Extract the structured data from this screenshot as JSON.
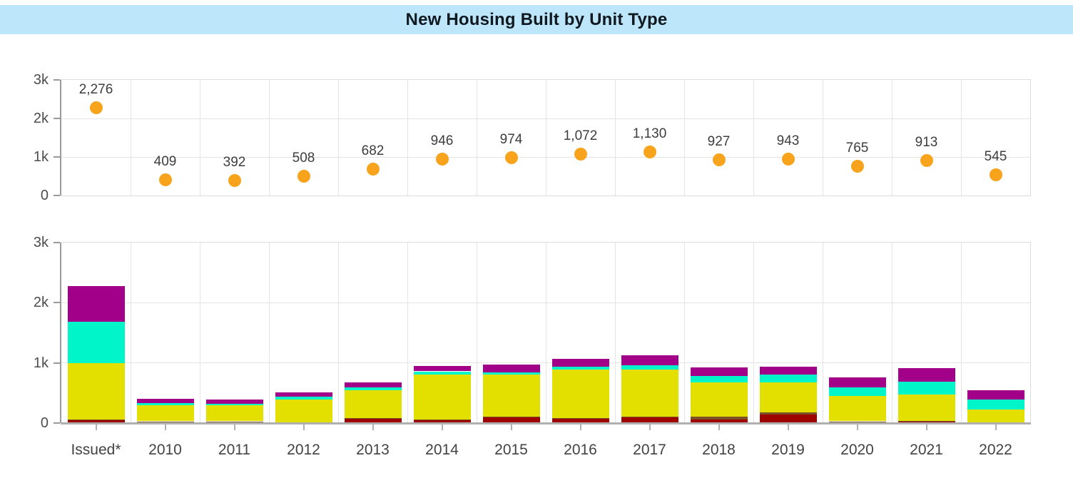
{
  "title": "New Housing Built by Unit Type",
  "colors": {
    "title_bar_bg": "#BDE6FA",
    "title_text": "#101820",
    "marker_orange": "#F7A41C",
    "bar_dark_red": "#9F0500",
    "bar_brown": "#7B5228",
    "bar_yellow": "#E3E000",
    "bar_turquoise": "#00F6C8",
    "bar_purple": "#A30089",
    "grid": "#E4E4E4",
    "panel_border": "#DCDCDC",
    "axis": "#9A9A9A",
    "axis_label": "#4D4D4D",
    "value_label": "#3D3D3D",
    "baseline": "#B0B0B0"
  },
  "categories": [
    "Issued*",
    "2010",
    "2011",
    "2012",
    "2013",
    "2014",
    "2015",
    "2016",
    "2017",
    "2018",
    "2019",
    "2020",
    "2021",
    "2022"
  ],
  "chart_data": [
    {
      "panel": "top",
      "type": "scatter",
      "title": "",
      "categories": [
        "Issued*",
        "2010",
        "2011",
        "2012",
        "2013",
        "2014",
        "2015",
        "2016",
        "2017",
        "2018",
        "2019",
        "2020",
        "2021",
        "2022"
      ],
      "values": [
        2276,
        409,
        392,
        508,
        682,
        946,
        974,
        1072,
        1130,
        927,
        943,
        765,
        913,
        545
      ],
      "value_labels": [
        "2,276",
        "409",
        "392",
        "508",
        "682",
        "946",
        "974",
        "1,072",
        "1,130",
        "927",
        "943",
        "765",
        "913",
        "545"
      ],
      "point_labels_shown": true,
      "marker": "circle",
      "marker_color": "#F7A41C",
      "ylim": [
        0,
        3000
      ],
      "y_ticks": [
        {
          "value": 0,
          "label": "0"
        },
        {
          "value": 1000,
          "label": "1k"
        },
        {
          "value": 2000,
          "label": "2k"
        },
        {
          "value": 3000,
          "label": "3k"
        }
      ],
      "grid": "on",
      "x_tick_labels_shown": false,
      "legend": "none"
    },
    {
      "panel": "bottom",
      "type": "bar",
      "stacked": true,
      "title": "",
      "categories": [
        "Issued*",
        "2010",
        "2011",
        "2012",
        "2013",
        "2014",
        "2015",
        "2016",
        "2017",
        "2018",
        "2019",
        "2020",
        "2021",
        "2022"
      ],
      "series": [
        {
          "name": "dark-red-segment",
          "color": "#9F0500",
          "values": [
            45,
            25,
            25,
            8,
            70,
            45,
            90,
            75,
            90,
            65,
            140,
            25,
            30,
            10
          ]
        },
        {
          "name": "brown-segment",
          "color": "#7B5228",
          "values": [
            10,
            5,
            5,
            7,
            10,
            15,
            12,
            10,
            12,
            45,
            40,
            5,
            5,
            5
          ]
        },
        {
          "name": "yellow-segment",
          "color": "#E3E000",
          "values": [
            945,
            270,
            265,
            375,
            465,
            750,
            700,
            810,
            790,
            570,
            500,
            425,
            445,
            215
          ]
        },
        {
          "name": "turquoise-segment",
          "color": "#00F6C8",
          "values": [
            685,
            30,
            25,
            45,
            45,
            50,
            45,
            45,
            70,
            105,
            130,
            140,
            210,
            165
          ]
        },
        {
          "name": "purple-segment",
          "color": "#A30089",
          "values": [
            591,
            79,
            72,
            73,
            92,
            86,
            127,
            132,
            168,
            142,
            133,
            170,
            223,
            150
          ]
        }
      ],
      "totals": [
        2276,
        409,
        392,
        508,
        682,
        946,
        974,
        1072,
        1130,
        927,
        943,
        765,
        913,
        545
      ],
      "ylim": [
        0,
        3000
      ],
      "y_ticks": [
        {
          "value": 0,
          "label": "0"
        },
        {
          "value": 1000,
          "label": "1k"
        },
        {
          "value": 2000,
          "label": "2k"
        },
        {
          "value": 3000,
          "label": "3k"
        }
      ],
      "grid": "on",
      "x_tick_labels_shown": true,
      "legend": "none"
    }
  ]
}
